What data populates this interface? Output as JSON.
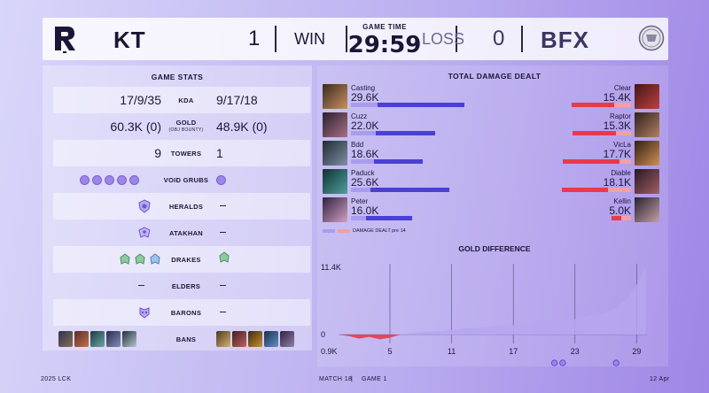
{
  "header": {
    "team_left": "KT",
    "score_left": "1",
    "result_left": "WIN",
    "game_time_label": "GAME TIME",
    "game_time": "29:59",
    "result_right": "LOSS",
    "score_right": "0",
    "team_right": "BFX"
  },
  "stats": {
    "title": "GAME STATS",
    "kda": {
      "left": "17/9/35",
      "label": "KDA",
      "right": "9/17/18"
    },
    "gold": {
      "left": "60.3K (0)",
      "label": "GOLD",
      "sublabel": "(OBJ BOUNTY)",
      "right": "48.9K (0)"
    },
    "towers": {
      "left": "9",
      "label": "TOWERS",
      "right": "1"
    },
    "void_grubs": {
      "label": "VOID GRUBS",
      "left_count": 5,
      "right_count": 1,
      "icon": "void-grub-icon"
    },
    "heralds": {
      "label": "HERALDS",
      "icon": "herald-icon"
    },
    "atakhan": {
      "label": "ATAKHAN",
      "icon": "atakhan-icon"
    },
    "drakes": {
      "label": "DRAKES",
      "icon": "drake-icon"
    },
    "elders": {
      "label": "ELDERS"
    },
    "barons": {
      "label": "BARONS",
      "icon": "baron-icon"
    },
    "bans": {
      "label": "BANS"
    }
  },
  "damage": {
    "title": "TOTAL DAMAGE DEALT",
    "legend": "DAMAGE DEALT pre 14",
    "left_color": "#4b3fd6",
    "left_pre_color": "#a99cf0",
    "right_color": "#e83a4a",
    "right_pre_color": "#f2a0a8",
    "max": 30,
    "left_players": [
      {
        "name": "Casting",
        "value": "29.6K",
        "total": 29.6,
        "pre14": 7.0
      },
      {
        "name": "Cuzz",
        "value": "22.0K",
        "total": 22.0,
        "pre14": 6.5
      },
      {
        "name": "Bdd",
        "value": "18.6K",
        "total": 18.6,
        "pre14": 6.0
      },
      {
        "name": "Paduck",
        "value": "25.6K",
        "total": 25.6,
        "pre14": 5.0
      },
      {
        "name": "Peter",
        "value": "16.0K",
        "total": 16.0,
        "pre14": 4.0
      }
    ],
    "right_players": [
      {
        "name": "Clear",
        "value": "15.4K",
        "total": 15.4,
        "pre14": 4.5
      },
      {
        "name": "Raptor",
        "value": "15.3K",
        "total": 15.3,
        "pre14": 4.0
      },
      {
        "name": "VicLa",
        "value": "17.7K",
        "total": 17.7,
        "pre14": 3.0
      },
      {
        "name": "Diable",
        "value": "18.1K",
        "total": 18.1,
        "pre14": 6.0
      },
      {
        "name": "Kellin",
        "value": "5.0K",
        "total": 5.0,
        "pre14": 2.5
      }
    ]
  },
  "chart_data": {
    "type": "area",
    "title": "GOLD DIFFERENCE",
    "y_top_label": "11.4K",
    "y_zero_label": "0",
    "y_bottom_label": "0.9K",
    "x_ticks": [
      "5",
      "11",
      "17",
      "23",
      "29"
    ],
    "ylim": [
      -0.9,
      11.4
    ],
    "xlim": [
      0,
      30
    ],
    "positive_color": "#b6a6f0",
    "negative_color": "#e83a4a",
    "x": [
      0,
      1,
      2,
      3,
      4,
      5,
      6,
      7,
      8,
      9,
      10,
      11,
      12,
      13,
      14,
      15,
      16,
      17,
      18,
      19,
      20,
      21,
      22,
      23,
      24,
      25,
      26,
      27,
      28,
      29,
      29.9
    ],
    "y": [
      0,
      -0.2,
      -0.5,
      -0.3,
      -0.6,
      -0.4,
      0.1,
      0.2,
      0.4,
      0.5,
      0.6,
      0.8,
      1.0,
      1.1,
      1.2,
      1.4,
      1.5,
      1.6,
      1.8,
      2.0,
      2.0,
      2.2,
      2.4,
      2.6,
      3.0,
      3.4,
      3.8,
      4.5,
      6.0,
      8.5,
      11.4
    ]
  },
  "footer": {
    "league": "2025 LCK",
    "match": "MATCH 18",
    "game": "GAME 1",
    "date": "12 Apr"
  }
}
